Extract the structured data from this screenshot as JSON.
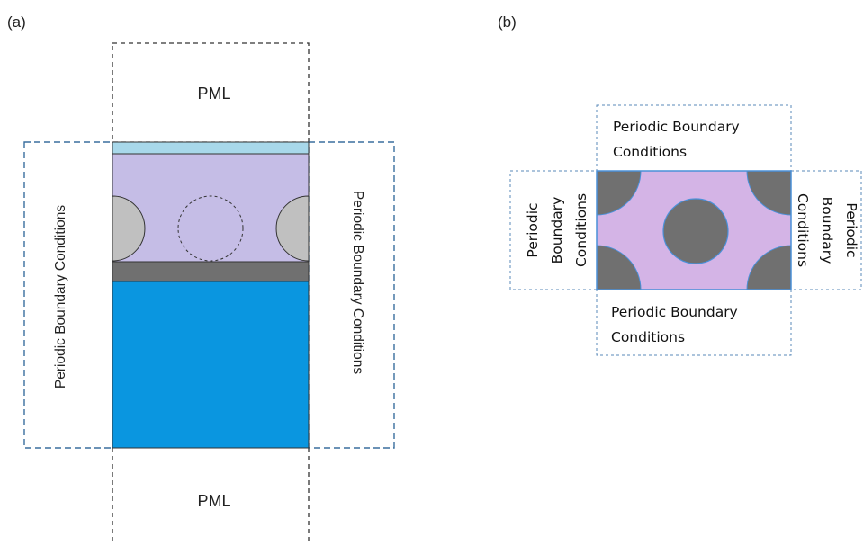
{
  "panel_a": {
    "tag": "(a)",
    "pml_top": "PML",
    "pml_bottom": "PML",
    "left_bc": "Periodic Boundary Conditions",
    "right_bc": "Periodic Boundary Conditions",
    "colors": {
      "top_strip": "#a8d8ea",
      "lavender": "#c5bde6",
      "particle": "#c0c0c0",
      "grey_layer": "#707070",
      "substrate": "#0a96e0",
      "dash_black": "#333333",
      "dash_blue": "#3a6e9e"
    }
  },
  "panel_b": {
    "tag": "(b)",
    "top_bc": [
      "Periodic Boundary",
      "Conditions"
    ],
    "bottom_bc": [
      "Periodic Boundary",
      "Conditions"
    ],
    "left_bc": [
      "Periodic",
      "Boundary",
      "Conditions"
    ],
    "right_bc": [
      "Conditions",
      "Boundary",
      "Periodic"
    ],
    "colors": {
      "cell_fill": "#d4b4e6",
      "particle": "#707070",
      "outline": "#4a90d9",
      "dash": "#5a8ab8"
    }
  }
}
